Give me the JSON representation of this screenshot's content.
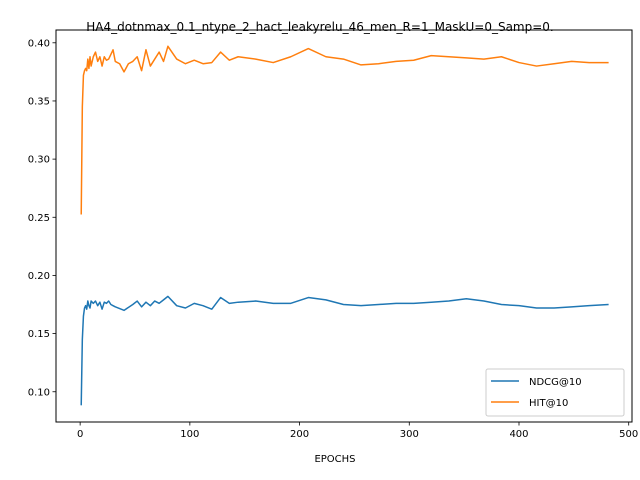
{
  "chart_data": {
    "type": "line",
    "title": "HA4_dotnmax_0.1_ntype_2_hact_leakyrelu_46_men_R=1_MaskU=0_Samp=0.",
    "xlabel": "EPOCHS",
    "ylabel": "",
    "xlim": [
      -22,
      503
    ],
    "ylim": [
      0.074,
      0.411
    ],
    "xticks": [
      0,
      100,
      200,
      300,
      400,
      500
    ],
    "yticks": [
      0.1,
      0.15,
      0.2,
      0.25,
      0.3,
      0.35,
      0.4
    ],
    "grid": false,
    "legend_position": "lower-right",
    "series": [
      {
        "name": "NDCG@10",
        "color": "#1f77b4",
        "x": [
          1,
          2,
          3,
          4,
          5,
          6,
          7,
          8,
          9,
          10,
          12,
          14,
          16,
          18,
          20,
          22,
          24,
          26,
          28,
          30,
          32,
          40,
          48,
          52,
          56,
          60,
          64,
          68,
          72,
          76,
          80,
          88,
          96,
          104,
          112,
          120,
          128,
          136,
          144,
          160,
          176,
          192,
          208,
          224,
          240,
          256,
          272,
          288,
          304,
          320,
          336,
          352,
          368,
          384,
          400,
          416,
          432,
          448,
          464,
          481
        ],
        "y": [
          0.089,
          0.145,
          0.165,
          0.172,
          0.174,
          0.171,
          0.178,
          0.174,
          0.172,
          0.178,
          0.176,
          0.178,
          0.174,
          0.177,
          0.171,
          0.177,
          0.176,
          0.178,
          0.175,
          0.174,
          0.173,
          0.17,
          0.175,
          0.178,
          0.173,
          0.177,
          0.174,
          0.178,
          0.176,
          0.179,
          0.182,
          0.174,
          0.172,
          0.176,
          0.174,
          0.171,
          0.181,
          0.176,
          0.177,
          0.178,
          0.176,
          0.176,
          0.181,
          0.179,
          0.175,
          0.174,
          0.175,
          0.176,
          0.176,
          0.177,
          0.178,
          0.18,
          0.178,
          0.175,
          0.174,
          0.172,
          0.172,
          0.173,
          0.174,
          0.175
        ]
      },
      {
        "name": "HIT@10",
        "color": "#ff7f0e",
        "x": [
          1,
          2,
          3,
          4,
          5,
          6,
          7,
          8,
          9,
          10,
          12,
          14,
          16,
          18,
          20,
          22,
          24,
          26,
          28,
          30,
          32,
          36,
          40,
          44,
          48,
          52,
          56,
          60,
          64,
          68,
          72,
          76,
          80,
          88,
          96,
          104,
          112,
          120,
          128,
          136,
          144,
          160,
          176,
          192,
          208,
          224,
          240,
          256,
          272,
          288,
          304,
          320,
          336,
          352,
          368,
          384,
          400,
          416,
          432,
          448,
          464,
          481
        ],
        "y": [
          0.253,
          0.345,
          0.372,
          0.376,
          0.378,
          0.376,
          0.386,
          0.378,
          0.388,
          0.38,
          0.388,
          0.392,
          0.384,
          0.388,
          0.38,
          0.388,
          0.385,
          0.386,
          0.39,
          0.394,
          0.384,
          0.382,
          0.375,
          0.382,
          0.384,
          0.388,
          0.376,
          0.394,
          0.38,
          0.386,
          0.392,
          0.384,
          0.397,
          0.386,
          0.382,
          0.385,
          0.382,
          0.383,
          0.392,
          0.385,
          0.388,
          0.386,
          0.383,
          0.388,
          0.395,
          0.388,
          0.386,
          0.381,
          0.382,
          0.384,
          0.385,
          0.389,
          0.388,
          0.387,
          0.386,
          0.388,
          0.383,
          0.38,
          0.382,
          0.384,
          0.383,
          0.383
        ]
      }
    ]
  }
}
